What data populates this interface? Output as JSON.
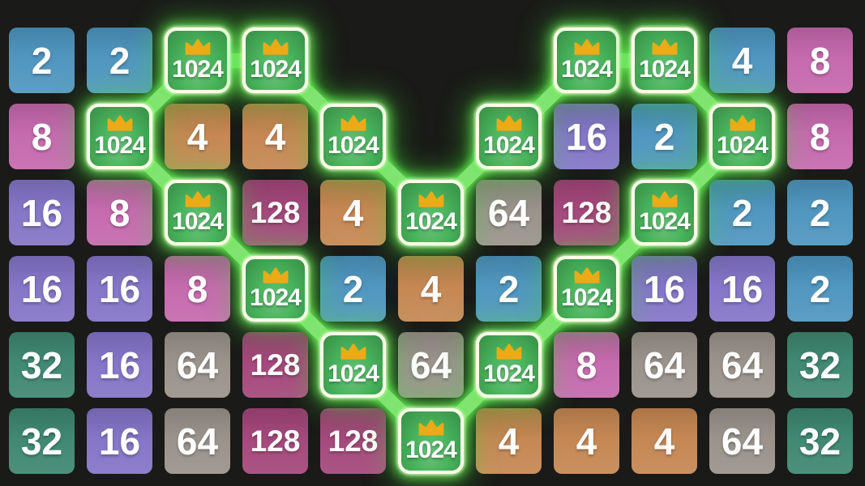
{
  "board": {
    "rows": 6,
    "cols": 11,
    "background_color": "#1a1a18",
    "crowned_value": 1024,
    "crown_color": "#ecaa17",
    "crown_border_color": "#fbffe9",
    "glow_color": "#5ce25e",
    "connector_color": "#9bec8b",
    "text_color": "#ffffff",
    "tile_colors": {
      "2": "#4d94be",
      "4": "#c48550",
      "8": "#c467ac",
      "16": "#8273c6",
      "32": "#3c8670",
      "64": "#98918a",
      "128": "#a34579",
      "1024": "#45b259"
    },
    "cells": [
      [
        2,
        2,
        1024,
        1024,
        null,
        null,
        null,
        1024,
        1024,
        4,
        8
      ],
      [
        8,
        1024,
        4,
        4,
        1024,
        null,
        1024,
        16,
        2,
        1024,
        8
      ],
      [
        16,
        8,
        1024,
        128,
        4,
        1024,
        64,
        128,
        1024,
        2,
        2
      ],
      [
        16,
        16,
        8,
        1024,
        2,
        4,
        2,
        1024,
        16,
        16,
        2
      ],
      [
        32,
        16,
        64,
        128,
        1024,
        64,
        1024,
        8,
        64,
        64,
        32
      ],
      [
        32,
        16,
        64,
        128,
        128,
        1024,
        4,
        4,
        4,
        64,
        32
      ]
    ],
    "color_overrides": [
      {
        "row": 0,
        "col": 9,
        "color_of": "2"
      }
    ],
    "chain_links": [
      [
        [
          1,
          1
        ],
        [
          0,
          2
        ]
      ],
      [
        [
          0,
          2
        ],
        [
          0,
          3
        ]
      ],
      [
        [
          0,
          3
        ],
        [
          1,
          4
        ]
      ],
      [
        [
          1,
          4
        ],
        [
          2,
          5
        ]
      ],
      [
        [
          2,
          5
        ],
        [
          1,
          6
        ]
      ],
      [
        [
          1,
          6
        ],
        [
          0,
          7
        ]
      ],
      [
        [
          0,
          7
        ],
        [
          0,
          8
        ]
      ],
      [
        [
          0,
          8
        ],
        [
          1,
          9
        ]
      ],
      [
        [
          1,
          9
        ],
        [
          2,
          8
        ]
      ],
      [
        [
          2,
          8
        ],
        [
          3,
          7
        ]
      ],
      [
        [
          3,
          7
        ],
        [
          4,
          6
        ]
      ],
      [
        [
          4,
          6
        ],
        [
          5,
          5
        ]
      ],
      [
        [
          5,
          5
        ],
        [
          4,
          4
        ]
      ],
      [
        [
          4,
          4
        ],
        [
          3,
          3
        ]
      ],
      [
        [
          3,
          3
        ],
        [
          2,
          2
        ]
      ],
      [
        [
          2,
          2
        ],
        [
          1,
          1
        ]
      ]
    ]
  }
}
